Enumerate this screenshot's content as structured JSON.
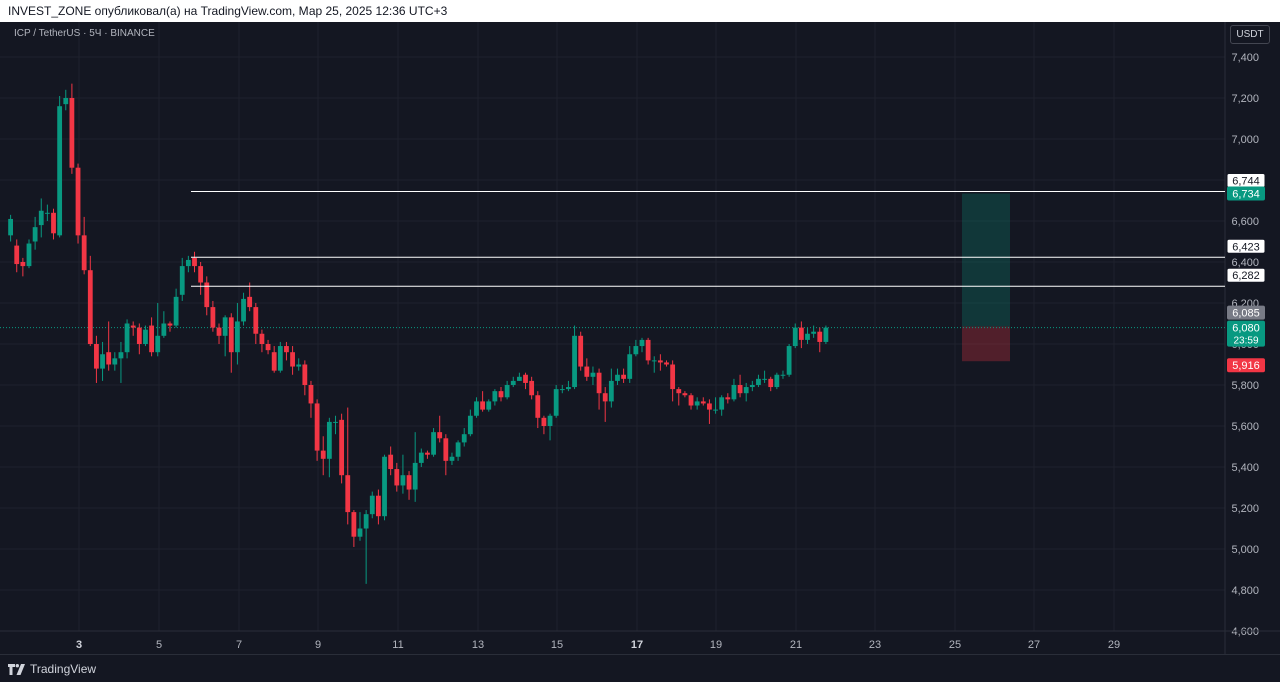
{
  "header": {
    "publish_info": "INVEST_ZONE опубликовал(а) на TradingView.com, Мар 25, 2025 12:36 UTC+3"
  },
  "legend": {
    "symbol": "ICP / TetherUS · 5Ч · BINANCE"
  },
  "axis": {
    "currency": "USDT"
  },
  "footer": {
    "brand": "TradingView"
  },
  "colors": {
    "background": "#141722",
    "up": "#089981",
    "down": "#f23645",
    "grid": "#1e222d",
    "axis_text": "#b2b5be"
  },
  "chart_data": {
    "type": "candlestick",
    "price_scale": {
      "min": 4600,
      "max": 7400,
      "step": 200,
      "ticks": [
        "7,400",
        "7,200",
        "7,000",
        "6,800",
        "6,600",
        "6,400",
        "6,200",
        "6,000",
        "5,800",
        "5,600",
        "5,400",
        "5,200",
        "5,000",
        "4,800",
        "4,600"
      ]
    },
    "time_axis": {
      "labels": [
        "3",
        "5",
        "7",
        "9",
        "11",
        "13",
        "15",
        "17",
        "19",
        "21",
        "23",
        "25",
        "27",
        "29"
      ],
      "bold_labels": [
        "3",
        "17"
      ]
    },
    "candles": [
      [
        6530,
        6610,
        6500,
        6630
      ],
      [
        6480,
        6390,
        6350,
        6510
      ],
      [
        6400,
        6380,
        6330,
        6420
      ],
      [
        6380,
        6490,
        6370,
        6510
      ],
      [
        6500,
        6570,
        6460,
        6620
      ],
      [
        6580,
        6650,
        6520,
        6710
      ],
      [
        6640,
        6640,
        6600,
        6680
      ],
      [
        6640,
        6540,
        6510,
        6660
      ],
      [
        6530,
        7160,
        6520,
        7210
      ],
      [
        7170,
        7200,
        7140,
        7240
      ],
      [
        7200,
        6860,
        6830,
        7270
      ],
      [
        6860,
        6530,
        6490,
        6880
      ],
      [
        6530,
        6360,
        6340,
        6620
      ],
      [
        6360,
        6000,
        5990,
        6430
      ],
      [
        6000,
        5880,
        5810,
        6040
      ],
      [
        5880,
        5950,
        5820,
        6010
      ],
      [
        5960,
        5900,
        5870,
        6110
      ],
      [
        5900,
        5930,
        5870,
        5960
      ],
      [
        5930,
        5960,
        5810,
        6010
      ],
      [
        5960,
        6100,
        5930,
        6120
      ],
      [
        6090,
        6080,
        6040,
        6110
      ],
      [
        6080,
        6000,
        5950,
        6100
      ],
      [
        6000,
        6070,
        5990,
        6090
      ],
      [
        6090,
        5960,
        5940,
        6130
      ],
      [
        5960,
        6040,
        5940,
        6200
      ],
      [
        6040,
        6100,
        6030,
        6160
      ],
      [
        6100,
        6090,
        6060,
        6110
      ],
      [
        6090,
        6230,
        6080,
        6270
      ],
      [
        6240,
        6380,
        6210,
        6420
      ],
      [
        6380,
        6410,
        6350,
        6430
      ],
      [
        6420,
        6380,
        6350,
        6450
      ],
      [
        6380,
        6300,
        6240,
        6400
      ],
      [
        6300,
        6180,
        6140,
        6330
      ],
      [
        6180,
        6080,
        6060,
        6210
      ],
      [
        6080,
        6040,
        6000,
        6100
      ],
      [
        6040,
        6130,
        5940,
        6140
      ],
      [
        6130,
        5960,
        5860,
        6150
      ],
      [
        5960,
        6110,
        5900,
        6200
      ],
      [
        6110,
        6220,
        6090,
        6250
      ],
      [
        6230,
        6180,
        6160,
        6300
      ],
      [
        6180,
        6050,
        6000,
        6200
      ],
      [
        6050,
        6000,
        5960,
        6070
      ],
      [
        6000,
        5970,
        5950,
        6020
      ],
      [
        5960,
        5870,
        5860,
        5990
      ],
      [
        5870,
        5990,
        5860,
        6010
      ],
      [
        5990,
        5960,
        5920,
        6010
      ],
      [
        5960,
        5890,
        5850,
        5990
      ],
      [
        5890,
        5900,
        5870,
        5930
      ],
      [
        5900,
        5800,
        5750,
        5920
      ],
      [
        5800,
        5710,
        5640,
        5820
      ],
      [
        5710,
        5480,
        5430,
        5730
      ],
      [
        5480,
        5440,
        5360,
        5550
      ],
      [
        5440,
        5620,
        5350,
        5640
      ],
      [
        5620,
        5620,
        5560,
        5650
      ],
      [
        5630,
        5360,
        5320,
        5660
      ],
      [
        5360,
        5180,
        5120,
        5690
      ],
      [
        5180,
        5060,
        5010,
        5190
      ],
      [
        5060,
        5100,
        5040,
        5180
      ],
      [
        5100,
        5170,
        4830,
        5190
      ],
      [
        5170,
        5260,
        5150,
        5280
      ],
      [
        5260,
        5160,
        5120,
        5290
      ],
      [
        5160,
        5450,
        5140,
        5460
      ],
      [
        5460,
        5390,
        5360,
        5500
      ],
      [
        5390,
        5310,
        5280,
        5420
      ],
      [
        5310,
        5360,
        5270,
        5460
      ],
      [
        5360,
        5290,
        5240,
        5380
      ],
      [
        5290,
        5420,
        5230,
        5570
      ],
      [
        5420,
        5470,
        5400,
        5490
      ],
      [
        5470,
        5460,
        5440,
        5480
      ],
      [
        5460,
        5570,
        5450,
        5590
      ],
      [
        5570,
        5540,
        5520,
        5650
      ],
      [
        5540,
        5430,
        5360,
        5560
      ],
      [
        5430,
        5450,
        5410,
        5470
      ],
      [
        5450,
        5520,
        5430,
        5530
      ],
      [
        5520,
        5560,
        5500,
        5590
      ],
      [
        5560,
        5650,
        5550,
        5680
      ],
      [
        5650,
        5720,
        5640,
        5740
      ],
      [
        5720,
        5680,
        5670,
        5770
      ],
      [
        5680,
        5720,
        5670,
        5730
      ],
      [
        5720,
        5770,
        5700,
        5780
      ],
      [
        5770,
        5740,
        5720,
        5790
      ],
      [
        5740,
        5800,
        5730,
        5820
      ],
      [
        5800,
        5820,
        5790,
        5840
      ],
      [
        5820,
        5840,
        5820,
        5860
      ],
      [
        5850,
        5810,
        5780,
        5860
      ],
      [
        5820,
        5750,
        5730,
        5840
      ],
      [
        5750,
        5640,
        5590,
        5770
      ],
      [
        5640,
        5600,
        5560,
        5650
      ],
      [
        5600,
        5650,
        5530,
        5660
      ],
      [
        5650,
        5780,
        5640,
        5800
      ],
      [
        5780,
        5780,
        5760,
        5800
      ],
      [
        5780,
        5790,
        5770,
        5820
      ],
      [
        5790,
        6040,
        5780,
        6090
      ],
      [
        6040,
        5890,
        5870,
        6060
      ],
      [
        5890,
        5840,
        5820,
        5930
      ],
      [
        5840,
        5860,
        5800,
        5890
      ],
      [
        5860,
        5760,
        5680,
        5880
      ],
      [
        5760,
        5720,
        5620,
        5790
      ],
      [
        5720,
        5820,
        5690,
        5880
      ],
      [
        5820,
        5850,
        5800,
        5880
      ],
      [
        5850,
        5830,
        5810,
        5880
      ],
      [
        5830,
        5950,
        5810,
        5990
      ],
      [
        5950,
        5990,
        5940,
        6020
      ],
      [
        5990,
        6020,
        5960,
        6030
      ],
      [
        6020,
        5920,
        5900,
        6030
      ],
      [
        5920,
        5920,
        5860,
        5940
      ],
      [
        5920,
        5910,
        5870,
        5950
      ],
      [
        5910,
        5900,
        5890,
        5920
      ],
      [
        5900,
        5780,
        5720,
        5920
      ],
      [
        5780,
        5760,
        5700,
        5790
      ],
      [
        5760,
        5750,
        5740,
        5770
      ],
      [
        5750,
        5700,
        5680,
        5760
      ],
      [
        5700,
        5720,
        5680,
        5740
      ],
      [
        5720,
        5710,
        5700,
        5740
      ],
      [
        5710,
        5680,
        5610,
        5730
      ],
      [
        5680,
        5680,
        5660,
        5740
      ],
      [
        5680,
        5740,
        5650,
        5750
      ],
      [
        5740,
        5730,
        5710,
        5760
      ],
      [
        5730,
        5800,
        5720,
        5830
      ],
      [
        5800,
        5760,
        5740,
        5850
      ],
      [
        5760,
        5790,
        5720,
        5810
      ],
      [
        5790,
        5800,
        5770,
        5820
      ],
      [
        5800,
        5830,
        5790,
        5850
      ],
      [
        5830,
        5830,
        5810,
        5870
      ],
      [
        5830,
        5790,
        5770,
        5840
      ],
      [
        5790,
        5850,
        5780,
        5860
      ],
      [
        5850,
        5850,
        5830,
        5870
      ],
      [
        5850,
        5990,
        5840,
        6000
      ],
      [
        5990,
        6080,
        5980,
        6100
      ],
      [
        6080,
        6020,
        5980,
        6110
      ],
      [
        6020,
        6050,
        6000,
        6080
      ],
      [
        6050,
        6060,
        6030,
        6090
      ],
      [
        6060,
        6010,
        5960,
        6080
      ],
      [
        6010,
        6080,
        6000,
        6090
      ]
    ],
    "horizontal_lines": [
      {
        "price": 6744,
        "label": "6,744"
      },
      {
        "price": 6423,
        "label": "6,423"
      },
      {
        "price": 6282,
        "label": "6,282"
      }
    ],
    "position": {
      "entry": 6085,
      "target": 6734,
      "stop": 5916,
      "entry_label": "6,085",
      "target_label": "6,734",
      "stop_label": "5,916"
    },
    "last_price": {
      "value": 6080,
      "label": "6,080",
      "countdown": "23:59"
    }
  }
}
